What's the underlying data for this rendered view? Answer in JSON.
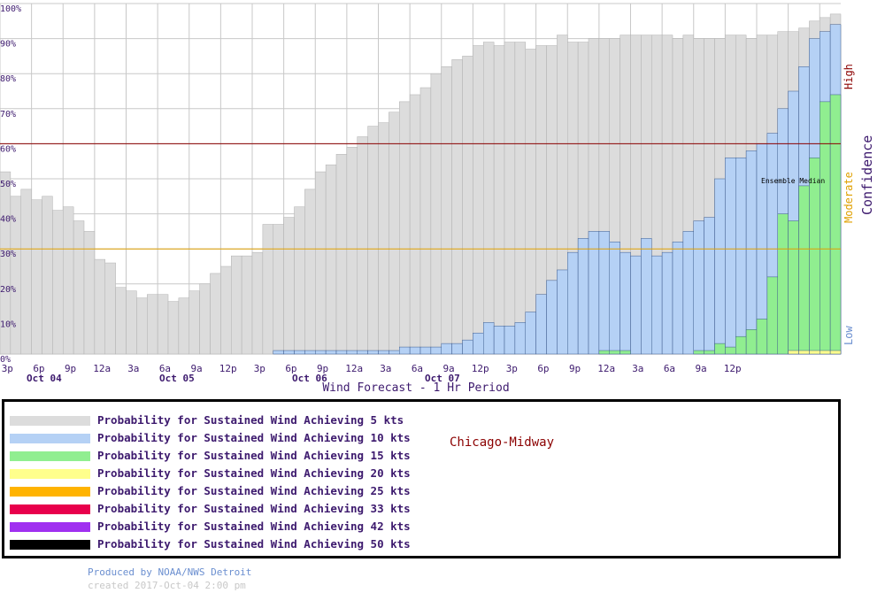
{
  "chart_data": {
    "type": "bar",
    "title": "",
    "xlabel": "Wind Forecast - 1 Hr Period",
    "ylabel": "",
    "ylim": [
      0,
      100
    ],
    "y_ticks": [
      "0%",
      "10%",
      "20%",
      "30%",
      "40%",
      "50%",
      "60%",
      "70%",
      "80%",
      "90%",
      "100%"
    ],
    "x_tick_labels": [
      "3p",
      "6p",
      "9p",
      "12a",
      "3a",
      "6a",
      "9a",
      "12p",
      "3p",
      "6p",
      "9p",
      "12a",
      "3a",
      "6a",
      "9a",
      "12p",
      "3p",
      "6p",
      "9p",
      "12a",
      "3a",
      "6a",
      "9a",
      "12p"
    ],
    "date_labels": [
      "Oct 04",
      "Oct 05",
      "Oct 06",
      "Oct 07"
    ],
    "confidence_axis": {
      "title": "Confidence",
      "high": "High",
      "moderate": "Moderate",
      "low": "Low"
    },
    "thresholds": [
      {
        "value": 30,
        "color": "#e0a000"
      },
      {
        "value": 60,
        "color": "#8b0000"
      }
    ],
    "annotation": "Ensemble Median",
    "series": [
      {
        "name": "Probability for Sustained Wind Achieving  5 kts",
        "color": "#dcdcdc",
        "values": [
          52,
          45,
          47,
          44,
          45,
          41,
          42,
          38,
          35,
          27,
          26,
          19,
          18,
          16,
          17,
          17,
          15,
          16,
          18,
          20,
          23,
          25,
          28,
          28,
          29,
          37,
          37,
          39,
          42,
          47,
          52,
          54,
          57,
          59,
          62,
          65,
          66,
          69,
          72,
          74,
          76,
          80,
          82,
          84,
          85,
          88,
          89,
          88,
          89,
          89,
          87,
          88,
          88,
          91,
          89,
          89,
          90,
          90,
          90,
          91,
          91,
          91,
          91,
          91,
          90,
          91,
          90,
          90,
          90,
          91,
          91,
          90,
          91,
          91,
          92,
          92,
          93,
          95,
          96,
          97
        ]
      },
      {
        "name": "Probability for Sustained Wind Achieving 10 kts",
        "color": "#b5d1f5",
        "values": [
          0,
          0,
          0,
          0,
          0,
          0,
          0,
          0,
          0,
          0,
          0,
          0,
          0,
          0,
          0,
          0,
          0,
          0,
          0,
          0,
          0,
          0,
          0,
          0,
          0,
          0,
          1,
          1,
          1,
          1,
          1,
          1,
          1,
          1,
          1,
          1,
          1,
          1,
          2,
          2,
          2,
          2,
          3,
          3,
          4,
          6,
          9,
          8,
          8,
          9,
          12,
          17,
          21,
          24,
          29,
          33,
          35,
          35,
          32,
          29,
          28,
          33,
          28,
          29,
          32,
          35,
          38,
          39,
          50,
          56,
          56,
          58,
          60,
          63,
          70,
          75,
          82,
          90,
          92,
          94
        ]
      },
      {
        "name": "Probability for Sustained Wind Achieving 15 kts",
        "color": "#90ee90",
        "values": [
          0,
          0,
          0,
          0,
          0,
          0,
          0,
          0,
          0,
          0,
          0,
          0,
          0,
          0,
          0,
          0,
          0,
          0,
          0,
          0,
          0,
          0,
          0,
          0,
          0,
          0,
          0,
          0,
          0,
          0,
          0,
          0,
          0,
          0,
          0,
          0,
          0,
          0,
          0,
          0,
          0,
          0,
          0,
          0,
          0,
          0,
          0,
          0,
          0,
          0,
          0,
          0,
          0,
          0,
          0,
          0,
          0,
          1,
          1,
          1,
          0,
          0,
          0,
          0,
          0,
          0,
          1,
          1,
          3,
          2,
          5,
          7,
          10,
          22,
          40,
          38,
          48,
          56,
          72,
          74
        ]
      },
      {
        "name": "Probability for Sustained Wind Achieving 20 kts",
        "color": "#ffff8c",
        "values": [
          0,
          0,
          0,
          0,
          0,
          0,
          0,
          0,
          0,
          0,
          0,
          0,
          0,
          0,
          0,
          0,
          0,
          0,
          0,
          0,
          0,
          0,
          0,
          0,
          0,
          0,
          0,
          0,
          0,
          0,
          0,
          0,
          0,
          0,
          0,
          0,
          0,
          0,
          0,
          0,
          0,
          0,
          0,
          0,
          0,
          0,
          0,
          0,
          0,
          0,
          0,
          0,
          0,
          0,
          0,
          0,
          0,
          0,
          0,
          0,
          0,
          0,
          0,
          0,
          0,
          0,
          0,
          0,
          0,
          0,
          0,
          0,
          0,
          0,
          0,
          1,
          1,
          1,
          1,
          1
        ]
      },
      {
        "name": "Probability for Sustained Wind Achieving 25 kts",
        "color": "#ffb300",
        "values": []
      },
      {
        "name": "Probability for Sustained Wind Achieving 33 kts",
        "color": "#e8004c",
        "values": []
      },
      {
        "name": "Probability for Sustained Wind Achieving 42 kts",
        "color": "#a030f0",
        "values": []
      },
      {
        "name": "Probability for Sustained Wind Achieving 50 kts",
        "color": "#000000",
        "values": []
      }
    ]
  },
  "station": "Chicago-Midway",
  "footer": {
    "produced": "Produced by NOAA/NWS Detroit",
    "created": "created 2017-Oct-04 2:00 pm"
  }
}
